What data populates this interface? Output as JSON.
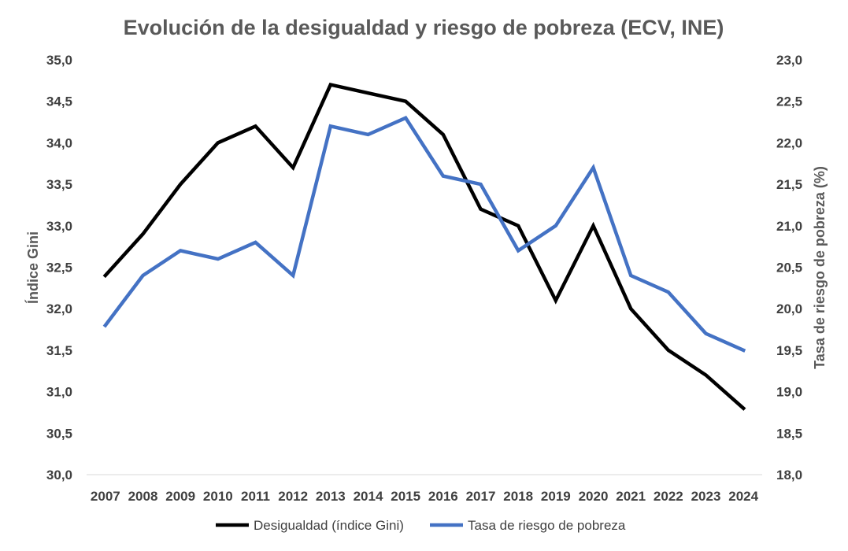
{
  "chart_data": {
    "type": "line",
    "title": "Evolución de la desigualdad y riesgo de pobreza (ECV, INE)",
    "categories": [
      "2007",
      "2008",
      "2009",
      "2010",
      "2011",
      "2012",
      "2013",
      "2014",
      "2015",
      "2016",
      "2017",
      "2018",
      "2019",
      "2020",
      "2021",
      "2022",
      "2023",
      "2024"
    ],
    "y_left": {
      "label": "Índice Gini",
      "range": [
        30,
        35
      ],
      "ticks": [
        "30,0",
        "30,5",
        "31,0",
        "31,5",
        "32,0",
        "32,5",
        "33,0",
        "33,5",
        "34,0",
        "34,5",
        "35,0"
      ]
    },
    "y_right": {
      "label": "Tasa de riesgo de pobreza (%)",
      "range": [
        18,
        23
      ],
      "ticks": [
        "18,0",
        "18,5",
        "19,0",
        "19,5",
        "20,0",
        "20,5",
        "21,0",
        "21,5",
        "22,0",
        "22,5",
        "23,0"
      ]
    },
    "series": [
      {
        "name": "Desigualdad (índice Gini)",
        "axis": "left",
        "color": "#000000",
        "values": [
          32.4,
          32.9,
          33.5,
          34.0,
          34.2,
          33.7,
          34.7,
          34.6,
          34.5,
          34.1,
          33.2,
          33.0,
          32.1,
          33.0,
          32.0,
          31.5,
          31.2,
          30.8
        ]
      },
      {
        "name": "Tasa de riesgo de pobreza",
        "axis": "right",
        "color": "#4472C4",
        "values": [
          19.8,
          20.4,
          20.7,
          20.6,
          20.8,
          20.4,
          22.2,
          22.1,
          22.3,
          21.6,
          21.5,
          20.7,
          21.0,
          21.7,
          20.4,
          20.2,
          19.7,
          19.5
        ]
      }
    ],
    "grid": false,
    "legend_position": "bottom"
  }
}
